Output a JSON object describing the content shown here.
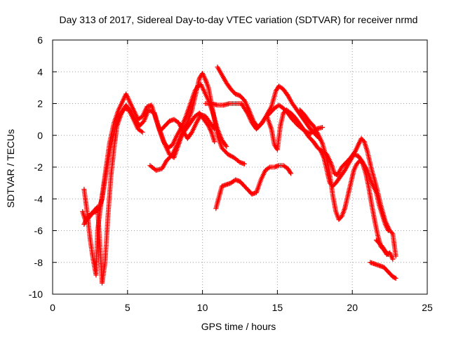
{
  "chart_data": {
    "type": "scatter",
    "title": "Day 313 of 2017, Sidereal Day-to-day VTEC variation (SDTVAR) for receiver nrmd",
    "xlabel": "GPS time / hours",
    "ylabel": "SDTVAR / TECUs",
    "xlim": [
      0,
      25
    ],
    "ylim": [
      -10,
      6
    ],
    "grid": true,
    "marker": "+",
    "xticks": [
      {
        "value": 0,
        "label": "0"
      },
      {
        "value": 5,
        "label": "5"
      },
      {
        "value": 10,
        "label": "10"
      },
      {
        "value": 15,
        "label": "15"
      },
      {
        "value": 20,
        "label": "20"
      },
      {
        "value": 25,
        "label": "25"
      }
    ],
    "yticks": [
      {
        "value": -10,
        "label": "-10"
      },
      {
        "value": -8,
        "label": "-8"
      },
      {
        "value": -6,
        "label": "-6"
      },
      {
        "value": -4,
        "label": "-4"
      },
      {
        "value": -2,
        "label": "-2"
      },
      {
        "value": 0,
        "label": "0"
      },
      {
        "value": 2,
        "label": "2"
      },
      {
        "value": 4,
        "label": "4"
      },
      {
        "value": 6,
        "label": "6"
      }
    ],
    "series": [
      {
        "name": "trace-1",
        "color": "#ff0000",
        "points": [
          [
            2.1,
            -3.4
          ],
          [
            2.3,
            -4.8
          ],
          [
            2.5,
            -6.5
          ],
          [
            2.7,
            -7.8
          ],
          [
            2.9,
            -8.8
          ],
          [
            3.0,
            -6.0
          ],
          [
            3.2,
            -4.5
          ],
          [
            3.5,
            -2.5
          ],
          [
            3.8,
            -0.5
          ],
          [
            4.1,
            0.8
          ],
          [
            4.4,
            1.6
          ],
          [
            4.7,
            2.2
          ],
          [
            4.9,
            2.6
          ],
          [
            5.1,
            2.2
          ],
          [
            5.4,
            1.6
          ],
          [
            5.7,
            1.0
          ],
          [
            6.0,
            1.2
          ],
          [
            6.3,
            1.8
          ],
          [
            6.6,
            1.9
          ],
          [
            6.9,
            1.0
          ],
          [
            7.2,
            0.2
          ],
          [
            7.5,
            -0.6
          ],
          [
            7.8,
            -1.2
          ],
          [
            8.1,
            -1.4
          ],
          [
            8.4,
            -0.6
          ],
          [
            8.7,
            0.2
          ],
          [
            9.0,
            0.8
          ],
          [
            9.3,
            1.6
          ],
          [
            9.6,
            2.8
          ],
          [
            9.8,
            3.6
          ],
          [
            10.0,
            3.9
          ],
          [
            10.2,
            3.5
          ],
          [
            10.4,
            3.0
          ],
          [
            10.6,
            2.0
          ],
          [
            10.8,
            1.0
          ],
          [
            11.0,
            0.0
          ],
          [
            11.3,
            -0.8
          ],
          [
            11.7,
            -1.2
          ],
          [
            12.1,
            -1.4
          ],
          [
            12.5,
            -1.7
          ],
          [
            12.8,
            -1.8
          ]
        ]
      },
      {
        "name": "trace-2",
        "color": "#ff0000",
        "points": [
          [
            2.0,
            -4.8
          ],
          [
            2.2,
            -5.4
          ],
          [
            2.5,
            -5.1
          ],
          [
            2.8,
            -4.7
          ],
          [
            3.0,
            -4.5
          ],
          [
            3.2,
            -7.5
          ],
          [
            3.3,
            -9.3
          ],
          [
            3.5,
            -8.0
          ],
          [
            3.7,
            -5.0
          ],
          [
            3.9,
            -2.5
          ],
          [
            4.1,
            -0.8
          ],
          [
            4.3,
            0.6
          ],
          [
            4.6,
            1.4
          ],
          [
            4.9,
            1.9
          ],
          [
            5.2,
            1.5
          ],
          [
            5.5,
            1.0
          ],
          [
            5.8,
            0.6
          ],
          [
            6.1,
            0.9
          ],
          [
            6.4,
            1.6
          ],
          [
            6.8,
            1.4
          ],
          [
            7.1,
            0.4
          ],
          [
            7.4,
            -0.4
          ],
          [
            7.7,
            -0.8
          ],
          [
            8.0,
            -0.6
          ],
          [
            8.3,
            0.0
          ],
          [
            8.6,
            0.5
          ],
          [
            8.9,
            1.2
          ],
          [
            9.2,
            2.0
          ],
          [
            9.5,
            2.8
          ],
          [
            9.7,
            3.1
          ],
          [
            9.9,
            3.2
          ],
          [
            10.1,
            2.8
          ],
          [
            10.4,
            2.2
          ],
          [
            10.7,
            1.4
          ],
          [
            11.0,
            0.4
          ],
          [
            11.3,
            -0.3
          ],
          [
            11.6,
            -0.7
          ]
        ]
      },
      {
        "name": "trace-3",
        "color": "#ff0000",
        "points": [
          [
            2.1,
            -5.6
          ],
          [
            2.3,
            -5.2
          ],
          [
            2.6,
            -4.9
          ],
          [
            2.9,
            -4.8
          ],
          [
            3.1,
            -4.6
          ],
          [
            3.3,
            -4.0
          ],
          [
            3.6,
            -2.2
          ],
          [
            3.9,
            -0.6
          ],
          [
            4.2,
            0.6
          ],
          [
            4.5,
            1.3
          ],
          [
            4.8,
            1.7
          ],
          [
            5.1,
            1.6
          ],
          [
            5.4,
            1.0
          ],
          [
            5.7,
            0.4
          ],
          [
            6.0,
            0.2
          ]
        ]
      },
      {
        "name": "trace-4",
        "color": "#ff0000",
        "points": [
          [
            6.5,
            -1.9
          ],
          [
            6.9,
            -2.2
          ],
          [
            7.3,
            -2.1
          ],
          [
            7.6,
            -1.6
          ],
          [
            8.0,
            -1.2
          ],
          [
            8.3,
            -0.6
          ],
          [
            8.6,
            0.0
          ],
          [
            8.9,
            0.4
          ],
          [
            9.2,
            0.8
          ],
          [
            9.5,
            1.2
          ],
          [
            9.8,
            1.4
          ],
          [
            10.1,
            1.0
          ],
          [
            10.4,
            0.6
          ],
          [
            10.6,
            0.2
          ],
          [
            10.8,
            -0.4
          ]
        ]
      },
      {
        "name": "trace-5",
        "color": "#ff0000",
        "points": [
          [
            7.2,
            0.3
          ],
          [
            7.5,
            0.6
          ],
          [
            7.8,
            0.9
          ],
          [
            8.1,
            1.0
          ],
          [
            8.4,
            0.8
          ],
          [
            8.7,
            0.3
          ],
          [
            9.0,
            -0.2
          ],
          [
            9.3,
            0.2
          ],
          [
            9.6,
            0.8
          ],
          [
            9.9,
            1.3
          ],
          [
            10.2,
            1.2
          ],
          [
            10.5,
            0.8
          ],
          [
            10.8,
            0.4
          ]
        ]
      },
      {
        "name": "trace-6",
        "color": "#ff0000",
        "points": [
          [
            10.9,
            -4.6
          ],
          [
            11.1,
            -3.9
          ],
          [
            11.3,
            -3.2
          ],
          [
            11.6,
            -3.1
          ],
          [
            11.9,
            -3.0
          ],
          [
            12.2,
            -2.8
          ],
          [
            12.5,
            -2.9
          ],
          [
            12.8,
            -3.2
          ],
          [
            13.0,
            -3.4
          ],
          [
            13.3,
            -3.7
          ],
          [
            13.6,
            -3.6
          ],
          [
            13.9,
            -2.8
          ],
          [
            14.2,
            -2.2
          ],
          [
            14.5,
            -2.0
          ],
          [
            14.8,
            -2.0
          ],
          [
            15.1,
            -1.9
          ],
          [
            15.4,
            -1.9
          ],
          [
            15.7,
            -2.1
          ],
          [
            15.9,
            -2.4
          ]
        ]
      },
      {
        "name": "trace-7",
        "color": "#ff0000",
        "points": [
          [
            11.0,
            4.3
          ],
          [
            11.3,
            3.8
          ],
          [
            11.6,
            3.3
          ],
          [
            11.9,
            2.9
          ],
          [
            12.2,
            2.6
          ],
          [
            12.5,
            2.5
          ],
          [
            12.8,
            2.2
          ],
          [
            13.1,
            1.6
          ],
          [
            13.4,
            0.9
          ],
          [
            13.7,
            0.5
          ],
          [
            14.0,
            0.8
          ],
          [
            14.3,
            1.3
          ],
          [
            14.6,
            1.8
          ],
          [
            14.9,
            2.8
          ],
          [
            15.1,
            3.1
          ],
          [
            15.4,
            2.9
          ],
          [
            15.7,
            2.5
          ],
          [
            16.0,
            2.0
          ],
          [
            16.3,
            1.6
          ],
          [
            16.6,
            1.2
          ],
          [
            16.9,
            0.8
          ],
          [
            17.2,
            0.4
          ],
          [
            17.5,
            0.1
          ],
          [
            17.8,
            -0.2
          ]
        ]
      },
      {
        "name": "trace-8",
        "color": "#ff0000",
        "points": [
          [
            10.2,
            2.0
          ],
          [
            10.6,
            2.0
          ],
          [
            11.0,
            1.9
          ],
          [
            11.4,
            1.9
          ],
          [
            11.8,
            2.0
          ],
          [
            12.2,
            2.0
          ],
          [
            12.6,
            2.0
          ],
          [
            13.0,
            1.4
          ],
          [
            13.3,
            0.8
          ],
          [
            13.6,
            0.4
          ],
          [
            13.9,
            0.7
          ],
          [
            14.2,
            1.1
          ],
          [
            14.5,
            1.4
          ],
          [
            14.8,
            1.7
          ],
          [
            15.1,
            1.9
          ],
          [
            15.4,
            1.7
          ],
          [
            15.7,
            1.4
          ],
          [
            16.0,
            1.0
          ],
          [
            16.4,
            0.6
          ],
          [
            16.8,
            0.3
          ],
          [
            17.2,
            0.1
          ],
          [
            17.6,
            0.4
          ],
          [
            18.0,
            0.5
          ]
        ]
      },
      {
        "name": "trace-9",
        "color": "#ff0000",
        "points": [
          [
            14.3,
            1.2
          ],
          [
            14.6,
            0.4
          ],
          [
            14.8,
            -0.6
          ],
          [
            15.0,
            -0.9
          ],
          [
            15.2,
            0.6
          ],
          [
            15.4,
            1.4
          ],
          [
            15.6,
            1.6
          ],
          [
            15.9,
            1.4
          ],
          [
            16.2,
            1.1
          ],
          [
            16.5,
            0.7
          ],
          [
            16.8,
            0.3
          ],
          [
            17.1,
            -0.1
          ],
          [
            17.4,
            -0.4
          ],
          [
            17.7,
            -0.8
          ],
          [
            18.0,
            -1.0
          ],
          [
            18.3,
            -1.2
          ],
          [
            18.6,
            -1.8
          ],
          [
            18.8,
            -2.4
          ],
          [
            19.0,
            -2.5
          ],
          [
            19.3,
            -2.0
          ],
          [
            19.6,
            -1.7
          ],
          [
            19.9,
            -1.4
          ],
          [
            20.2,
            -1.0
          ],
          [
            20.4,
            -0.6
          ],
          [
            20.6,
            -0.2
          ],
          [
            20.8,
            -0.4
          ],
          [
            21.0,
            -1.0
          ],
          [
            21.3,
            -2.2
          ],
          [
            21.6,
            -3.2
          ],
          [
            21.9,
            -4.4
          ],
          [
            22.2,
            -5.4
          ],
          [
            22.5,
            -6.0
          ],
          [
            22.7,
            -6.2
          ],
          [
            22.9,
            -7.6
          ]
        ]
      },
      {
        "name": "trace-10",
        "color": "#ff0000",
        "points": [
          [
            16.5,
            1.6
          ],
          [
            16.8,
            1.3
          ],
          [
            17.1,
            0.9
          ],
          [
            17.4,
            0.6
          ],
          [
            17.7,
            0.1
          ],
          [
            18.0,
            -0.5
          ],
          [
            18.3,
            -1.5
          ],
          [
            18.5,
            -2.5
          ],
          [
            18.7,
            -3.8
          ],
          [
            18.9,
            -4.8
          ],
          [
            19.1,
            -5.3
          ],
          [
            19.3,
            -5.1
          ],
          [
            19.5,
            -4.6
          ],
          [
            19.7,
            -3.8
          ],
          [
            19.9,
            -3.0
          ],
          [
            20.1,
            -2.2
          ],
          [
            20.3,
            -1.8
          ],
          [
            20.5,
            -1.6
          ],
          [
            20.7,
            -1.8
          ],
          [
            20.9,
            -2.4
          ],
          [
            21.1,
            -3.3
          ],
          [
            21.3,
            -4.4
          ],
          [
            21.5,
            -5.4
          ],
          [
            21.7,
            -6.3
          ],
          [
            21.9,
            -7.0
          ],
          [
            22.1,
            -7.2
          ],
          [
            22.3,
            -7.5
          ],
          [
            22.5,
            -7.4
          ],
          [
            22.7,
            -7.8
          ]
        ]
      },
      {
        "name": "trace-11",
        "color": "#ff0000",
        "points": [
          [
            17.9,
            -1.0
          ],
          [
            18.1,
            -1.4
          ],
          [
            18.3,
            -2.2
          ],
          [
            18.5,
            -3.0
          ],
          [
            18.7,
            -3.2
          ],
          [
            18.9,
            -3.0
          ],
          [
            19.2,
            -2.6
          ],
          [
            19.5,
            -2.2
          ],
          [
            19.8,
            -1.7
          ],
          [
            20.1,
            -1.2
          ],
          [
            20.4,
            -1.3
          ],
          [
            20.7,
            -1.7
          ],
          [
            21.0,
            -2.2
          ],
          [
            21.3,
            -3.0
          ],
          [
            21.6,
            -3.6
          ],
          [
            21.8,
            -4.4
          ],
          [
            22.0,
            -5.0
          ],
          [
            22.2,
            -5.6
          ],
          [
            22.4,
            -6.0
          ]
        ]
      },
      {
        "name": "trace-12",
        "color": "#ff0000",
        "points": [
          [
            21.2,
            -8.0
          ],
          [
            21.5,
            -8.1
          ],
          [
            21.8,
            -8.2
          ],
          [
            22.1,
            -8.3
          ],
          [
            22.4,
            -8.6
          ],
          [
            22.7,
            -8.9
          ],
          [
            22.9,
            -9.0
          ]
        ]
      },
      {
        "name": "trace-13",
        "color": "#ff0000",
        "points": [
          [
            21.6,
            -6.6
          ],
          [
            21.8,
            -6.8
          ],
          [
            22.0,
            -7.0
          ],
          [
            22.2,
            -7.3
          ],
          [
            22.4,
            -7.5
          ]
        ]
      }
    ]
  }
}
